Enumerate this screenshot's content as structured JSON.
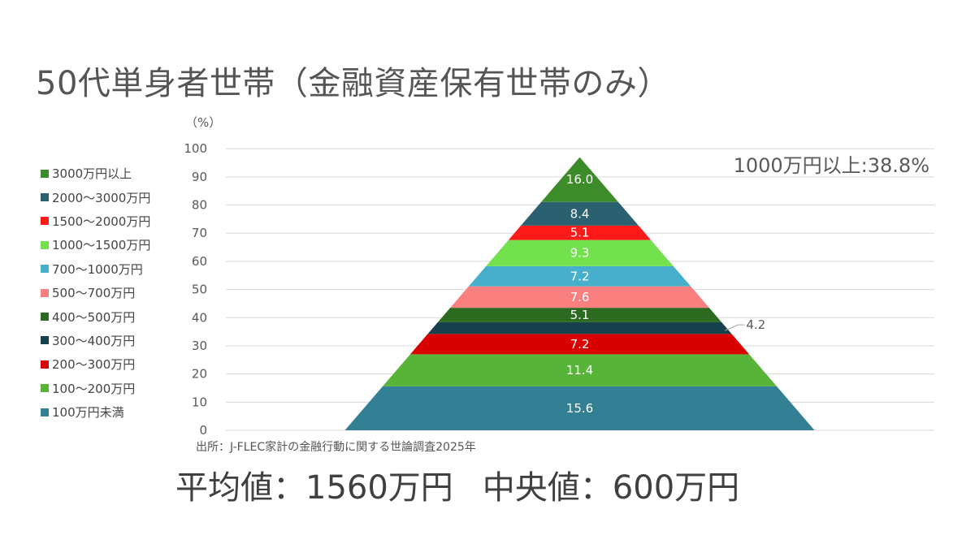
{
  "title": "50代単身者世帯（金融資産保有世帯のみ）",
  "source": "出所：J-FLEC家計の金融行動に関する世論調査2025年",
  "stats": {
    "average": "平均値：1560万円",
    "median": "中央値：600万円"
  },
  "chart_data": {
    "type": "bar",
    "stacked": true,
    "shape": "pyramid",
    "unit_label": "（%）",
    "ylim": [
      0,
      100
    ],
    "yticks": [
      0,
      10,
      20,
      30,
      40,
      50,
      60,
      70,
      80,
      90,
      100
    ],
    "grid": true,
    "legend_position": "left",
    "callout": "1000万円以上:38.8%",
    "series": [
      {
        "name": "100万円未満",
        "value": 15.6,
        "label": "15.6",
        "color": "#337f93"
      },
      {
        "name": "100～200万円",
        "value": 11.4,
        "label": "11.4",
        "color": "#58b439"
      },
      {
        "name": "200～300万円",
        "value": 7.2,
        "label": "7.2",
        "color": "#d90000"
      },
      {
        "name": "300～400万円",
        "value": 4.2,
        "label": "4.2",
        "color": "#17404d",
        "label_outside": true
      },
      {
        "name": "400～500万円",
        "value": 5.1,
        "label": "5.1",
        "color": "#2b6a1f"
      },
      {
        "name": "500～700万円",
        "value": 7.6,
        "label": "7.6",
        "color": "#fa8080"
      },
      {
        "name": "700～1000万円",
        "value": 7.2,
        "label": "7.2",
        "color": "#47afcc"
      },
      {
        "name": "1000～1500万円",
        "value": 9.3,
        "label": "9.3",
        "color": "#73e04e"
      },
      {
        "name": "1500～2000万円",
        "value": 5.1,
        "label": "5.1",
        "color": "#ff1a1a"
      },
      {
        "name": "2000～3000万円",
        "value": 8.4,
        "label": "8.4",
        "color": "#2a6070"
      },
      {
        "name": "3000万円以上",
        "value": 16.0,
        "label": "16.0",
        "color": "#3d8c2a"
      }
    ]
  }
}
